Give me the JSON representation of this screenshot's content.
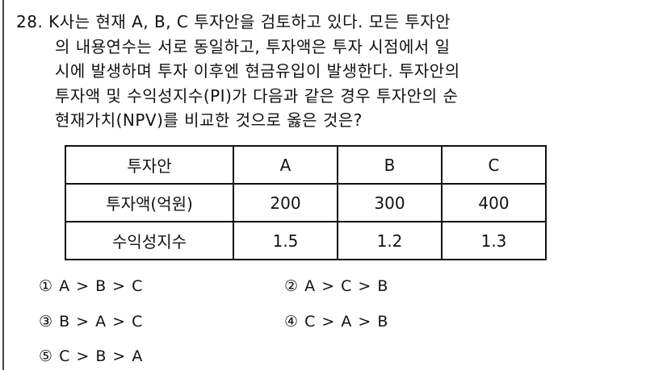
{
  "question": {
    "number": "28.",
    "lines": [
      "K사는 현재 A, B, C 투자안을 검토하고 있다. 모든 투자안",
      "의 내용연수는 서로 동일하고, 투자액은 투자 시점에서 일",
      "시에 발생하며 투자 이후엔 현금유입이 발생한다. 투자안의",
      "투자액 및 수익성지수(PI)가 다음과 같은 경우 투자안의 순",
      "현재가치(NPV)를 비교한 것으로 옳은 것은?"
    ]
  },
  "table": {
    "header": [
      "투자안",
      "A",
      "B",
      "C"
    ],
    "rows": [
      [
        "투자액(억원)",
        "200",
        "300",
        "400"
      ],
      [
        "수익성지수",
        "1.5",
        "1.2",
        "1.3"
      ]
    ]
  },
  "options": [
    "① A > B > C",
    "② A > C > B",
    "③ B > A > C",
    "④ C > A > B",
    "⑤ C > B > A"
  ]
}
